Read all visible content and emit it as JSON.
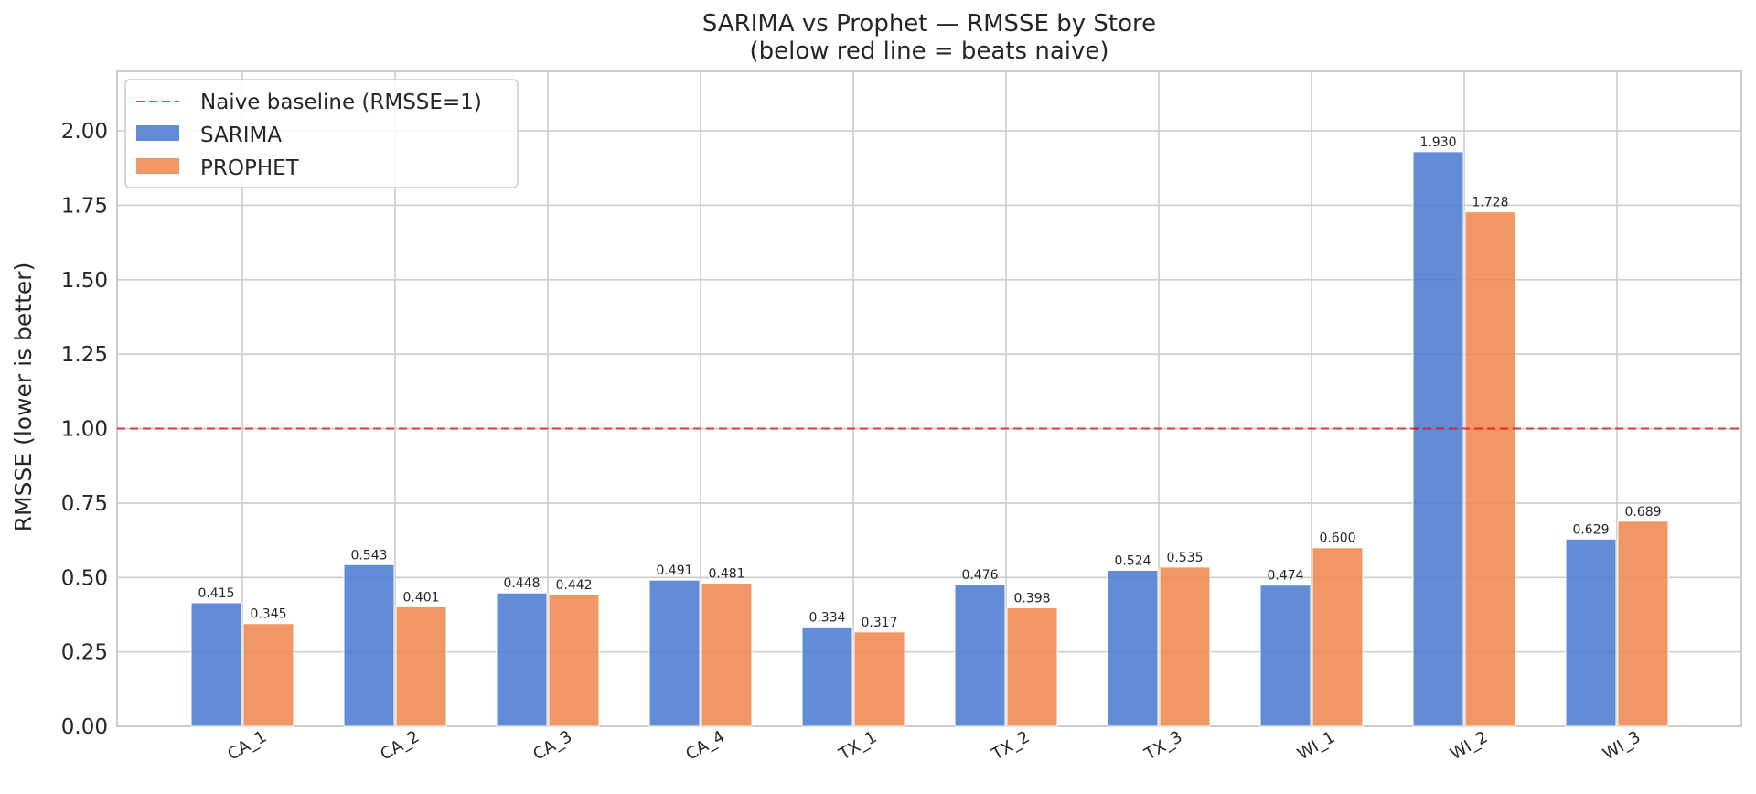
{
  "chart_data": {
    "type": "bar",
    "title": "SARIMA vs Prophet — RMSSE by Store",
    "subtitle": "(below red line = beats naive)",
    "ylabel": "RMSSE (lower is better)",
    "xlabel": "",
    "categories": [
      "CA_1",
      "CA_2",
      "CA_3",
      "CA_4",
      "TX_1",
      "TX_2",
      "TX_3",
      "WI_1",
      "WI_2",
      "WI_3"
    ],
    "series": [
      {
        "name": "SARIMA",
        "color": "#4878d0",
        "values": [
          0.415,
          0.543,
          0.448,
          0.491,
          0.334,
          0.476,
          0.524,
          0.474,
          1.93,
          0.629
        ],
        "labels": [
          "0.415",
          "0.543",
          "0.448",
          "0.491",
          "0.334",
          "0.476",
          "0.524",
          "0.474",
          "1.930",
          "0.629"
        ]
      },
      {
        "name": "PROPHET",
        "color": "#ee854a",
        "values": [
          0.345,
          0.401,
          0.442,
          0.481,
          0.317,
          0.398,
          0.535,
          0.6,
          1.728,
          0.689
        ],
        "labels": [
          "0.345",
          "0.401",
          "0.442",
          "0.481",
          "0.317",
          "0.398",
          "0.535",
          "0.600",
          "1.728",
          "0.689"
        ]
      }
    ],
    "reference_line": {
      "label": "Naive baseline (RMSSE=1)",
      "value": 1.0,
      "color": "#e8000b",
      "style": "dashed"
    },
    "ylim": [
      0,
      2.2
    ],
    "yticks": [
      0.0,
      0.25,
      0.5,
      0.75,
      1.0,
      1.25,
      1.5,
      1.75,
      2.0
    ],
    "ytick_labels": [
      "0.00",
      "0.25",
      "0.50",
      "0.75",
      "1.00",
      "1.25",
      "1.50",
      "1.75",
      "2.00"
    ],
    "grid": true,
    "legend_position": "top-left"
  }
}
